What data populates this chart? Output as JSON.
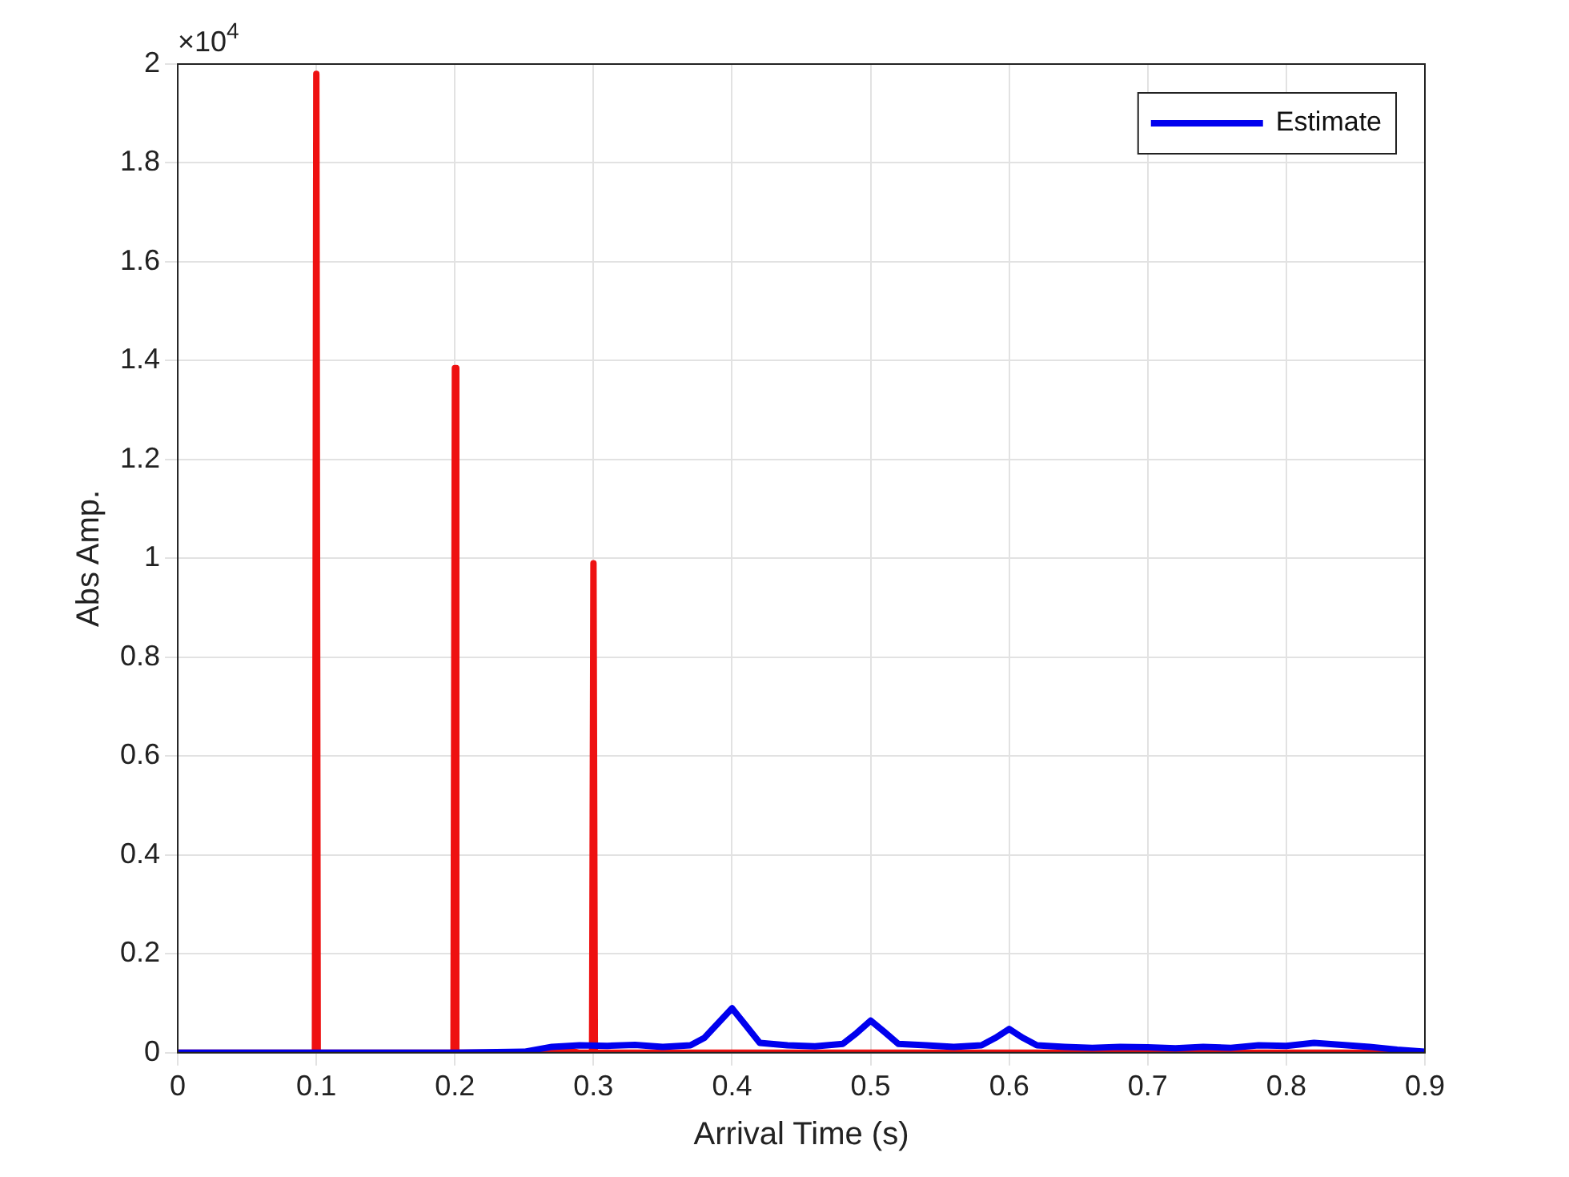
{
  "chart_data": {
    "type": "line",
    "xlabel": "Arrival Time (s)",
    "ylabel": "Abs Amp.",
    "annotations": [
      "×10$^{4}$"
    ],
    "xlim": [
      0,
      0.9
    ],
    "xticks": [
      0,
      0.1,
      0.2,
      0.3,
      0.4,
      0.5,
      0.6,
      0.7,
      0.8,
      0.9
    ],
    "ylim": [
      0,
      2
    ],
    "yticks": [
      0,
      0.2,
      0.4,
      0.6,
      0.8,
      1,
      1.2,
      1.4,
      1.6,
      1.8,
      2
    ],
    "grid": true,
    "legend": "top right",
    "marker": "none",
    "line_style": "solid",
    "series": [
      {
        "color": "#ee1111",
        "x": [
          0,
          0.099,
          0.1,
          0.101,
          0.199,
          0.2,
          0.201,
          0.26,
          0.28,
          0.29,
          0.299,
          0.3,
          0.301,
          0.9
        ],
        "values": [
          0,
          0,
          1.98,
          0,
          0,
          1.385,
          0,
          0,
          0.006,
          0,
          0,
          0.99,
          0,
          0
        ]
      },
      {
        "name": "Estimate",
        "color": "#0000ee",
        "x": [
          0,
          0.1,
          0.2,
          0.25,
          0.27,
          0.29,
          0.31,
          0.33,
          0.35,
          0.37,
          0.38,
          0.39,
          0.4,
          0.41,
          0.42,
          0.44,
          0.46,
          0.48,
          0.49,
          0.5,
          0.51,
          0.52,
          0.54,
          0.56,
          0.58,
          0.59,
          0.6,
          0.61,
          0.62,
          0.64,
          0.66,
          0.68,
          0.7,
          0.72,
          0.74,
          0.76,
          0.78,
          0.8,
          0.82,
          0.84,
          0.86,
          0.88,
          0.9
        ],
        "values": [
          0,
          0,
          0,
          0.002,
          0.012,
          0.015,
          0.014,
          0.016,
          0.012,
          0.015,
          0.03,
          0.06,
          0.09,
          0.055,
          0.02,
          0.015,
          0.013,
          0.018,
          0.04,
          0.065,
          0.042,
          0.018,
          0.015,
          0.012,
          0.015,
          0.03,
          0.048,
          0.03,
          0.015,
          0.012,
          0.01,
          0.012,
          0.011,
          0.009,
          0.012,
          0.01,
          0.015,
          0.014,
          0.02,
          0.016,
          0.012,
          0.006,
          0.002
        ]
      }
    ]
  }
}
